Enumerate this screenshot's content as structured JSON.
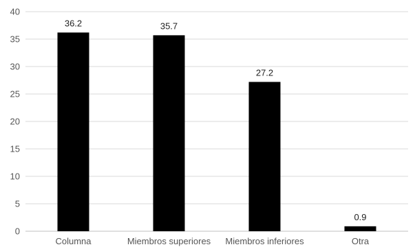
{
  "chart_data": {
    "type": "bar",
    "title": "",
    "xlabel": "",
    "ylabel": "",
    "categories": [
      "Columna",
      "Miembros superiores",
      "Miembros inferiores",
      "Otra"
    ],
    "values": [
      36.2,
      35.7,
      27.2,
      0.9
    ],
    "ylim": [
      0,
      40
    ],
    "yticks": [
      0,
      5,
      10,
      15,
      20,
      25,
      30,
      35,
      40
    ],
    "grid": true,
    "legend": "none",
    "bar_color": "#000000",
    "grid_color": "#d9d9d9"
  }
}
